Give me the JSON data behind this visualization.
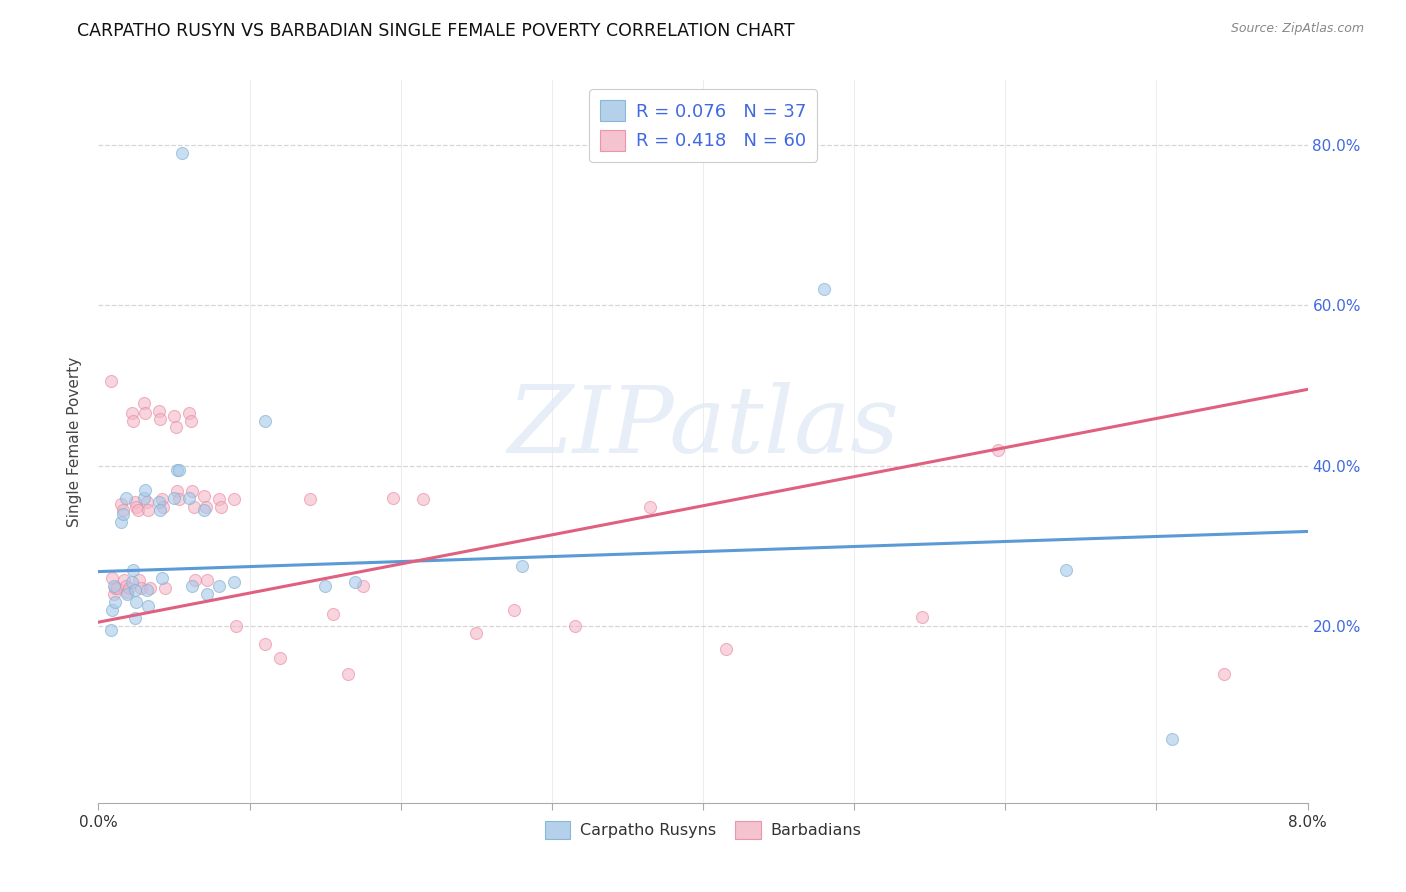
{
  "title": "CARPATHO RUSYN VS BARBADIAN SINGLE FEMALE POVERTY CORRELATION CHART",
  "source": "Source: ZipAtlas.com",
  "ylabel": "Single Female Poverty",
  "xlim": [
    0.0,
    0.08
  ],
  "ylim": [
    -0.02,
    0.88
  ],
  "y_ticks": [
    0.2,
    0.4,
    0.6,
    0.8
  ],
  "y_tick_labels": [
    "20.0%",
    "40.0%",
    "60.0%",
    "80.0%"
  ],
  "x_ticks": [
    0.0,
    0.01,
    0.02,
    0.03,
    0.04,
    0.05,
    0.06,
    0.07,
    0.08
  ],
  "x_tick_labels_show": {
    "0": "0.0%",
    "8": "8.0%"
  },
  "legend_r_blue": "0.076",
  "legend_n_blue": "37",
  "legend_r_pink": "0.418",
  "legend_n_pink": "60",
  "blue_scatter_color": "#a8c8e8",
  "pink_scatter_color": "#f4b8c8",
  "blue_edge_color": "#7aafd4",
  "pink_edge_color": "#e888a0",
  "blue_line_color": "#5b9bd5",
  "pink_line_color": "#e06080",
  "legend_text_color": "#4169e1",
  "watermark_text": "ZIPatlas",
  "watermark_color": "#dde8f4",
  "blue_points_x": [
    0.0055,
    0.0008,
    0.0009,
    0.001,
    0.0011,
    0.0015,
    0.0016,
    0.0018,
    0.0019,
    0.0022,
    0.0023,
    0.0024,
    0.0024,
    0.0025,
    0.003,
    0.0031,
    0.0032,
    0.0033,
    0.004,
    0.0041,
    0.0042,
    0.005,
    0.0052,
    0.0053,
    0.006,
    0.0062,
    0.007,
    0.0072,
    0.008,
    0.009,
    0.011,
    0.015,
    0.017,
    0.028,
    0.048,
    0.064,
    0.071
  ],
  "blue_points_y": [
    0.79,
    0.195,
    0.22,
    0.25,
    0.23,
    0.33,
    0.34,
    0.36,
    0.24,
    0.255,
    0.27,
    0.245,
    0.21,
    0.23,
    0.36,
    0.37,
    0.245,
    0.225,
    0.355,
    0.345,
    0.26,
    0.36,
    0.395,
    0.395,
    0.36,
    0.25,
    0.345,
    0.24,
    0.25,
    0.255,
    0.455,
    0.25,
    0.255,
    0.275,
    0.62,
    0.27,
    0.06
  ],
  "pink_points_x": [
    0.0008,
    0.0009,
    0.001,
    0.0011,
    0.0012,
    0.0015,
    0.0016,
    0.0017,
    0.0018,
    0.0019,
    0.002,
    0.0022,
    0.0023,
    0.0024,
    0.0025,
    0.0026,
    0.0027,
    0.0028,
    0.003,
    0.0031,
    0.0032,
    0.0033,
    0.0034,
    0.004,
    0.0041,
    0.0042,
    0.0043,
    0.0044,
    0.005,
    0.0051,
    0.0052,
    0.0053,
    0.006,
    0.0061,
    0.0062,
    0.0063,
    0.0064,
    0.007,
    0.0071,
    0.0072,
    0.008,
    0.0081,
    0.009,
    0.0091,
    0.011,
    0.012,
    0.014,
    0.0155,
    0.0165,
    0.0175,
    0.0195,
    0.0215,
    0.025,
    0.0275,
    0.0315,
    0.0365,
    0.0415,
    0.0545,
    0.0595,
    0.0745
  ],
  "pink_points_y": [
    0.505,
    0.26,
    0.24,
    0.248,
    0.248,
    0.352,
    0.345,
    0.258,
    0.25,
    0.242,
    0.248,
    0.465,
    0.455,
    0.355,
    0.348,
    0.345,
    0.258,
    0.248,
    0.478,
    0.465,
    0.355,
    0.345,
    0.248,
    0.468,
    0.458,
    0.358,
    0.348,
    0.248,
    0.462,
    0.448,
    0.368,
    0.358,
    0.465,
    0.455,
    0.368,
    0.348,
    0.258,
    0.362,
    0.348,
    0.258,
    0.358,
    0.348,
    0.358,
    0.2,
    0.178,
    0.16,
    0.358,
    0.215,
    0.14,
    0.25,
    0.36,
    0.358,
    0.192,
    0.22,
    0.2,
    0.348,
    0.172,
    0.212,
    0.42,
    0.14
  ],
  "blue_line_x": [
    0.0,
    0.08
  ],
  "blue_line_y": [
    0.268,
    0.318
  ],
  "pink_line_x": [
    0.0,
    0.08
  ],
  "pink_line_y": [
    0.205,
    0.495
  ],
  "background_color": "#ffffff",
  "grid_color": "#cccccc",
  "title_fontsize": 12.5,
  "axis_label_fontsize": 11,
  "tick_fontsize": 11,
  "marker_size": 75,
  "marker_alpha": 0.6
}
